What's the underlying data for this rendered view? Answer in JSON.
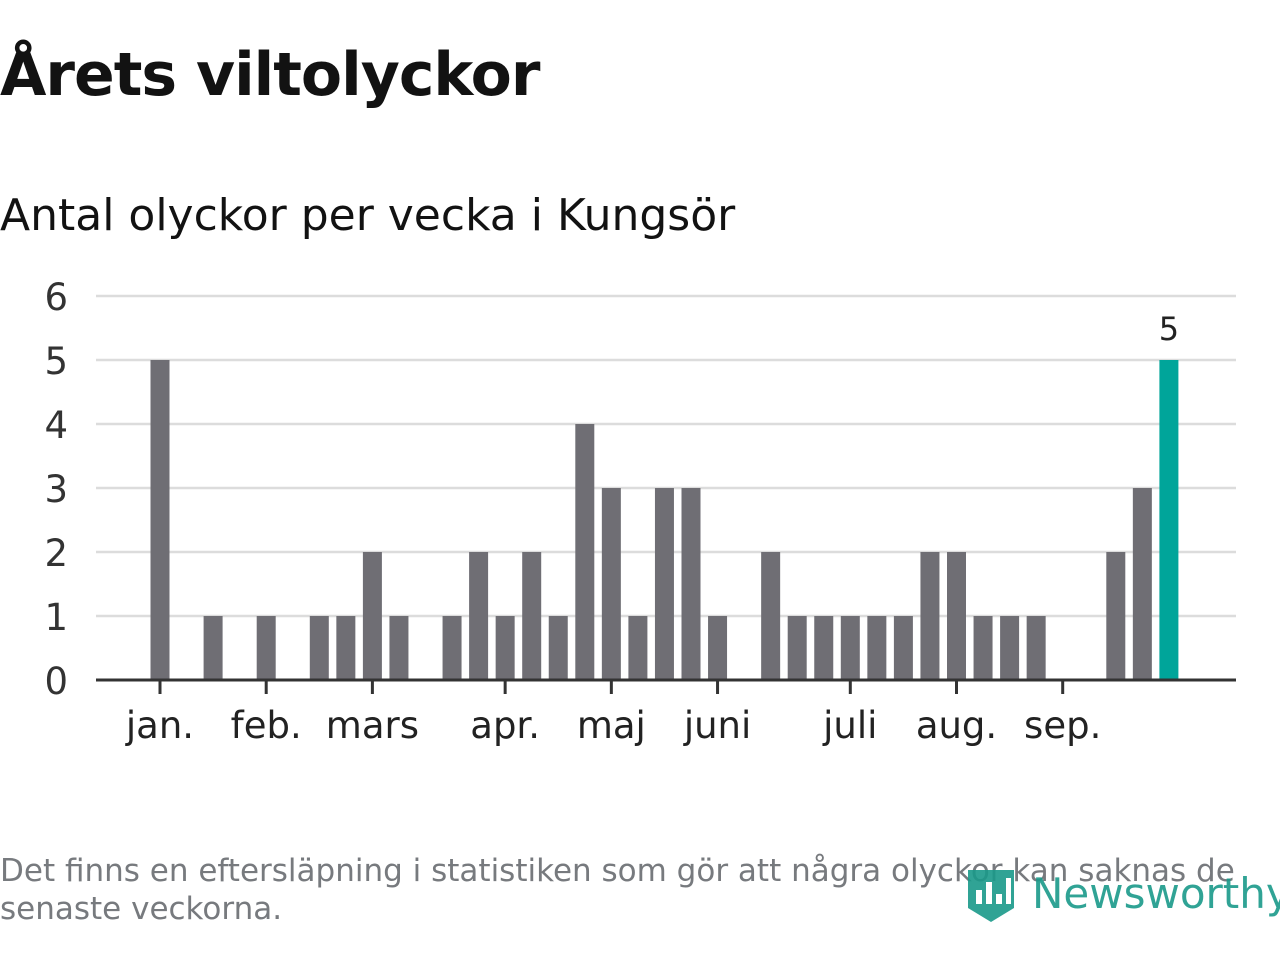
{
  "chart_data": {
    "type": "bar",
    "title": "Årets viltolyckor",
    "subtitle": "Antal olyckor per vecka i Kungsör",
    "x": [
      1,
      2,
      3,
      4,
      5,
      6,
      7,
      8,
      9,
      10,
      11,
      12,
      13,
      14,
      15,
      16,
      17,
      18,
      19,
      20,
      21,
      22,
      23,
      24,
      25,
      26,
      27,
      28,
      29,
      30,
      31,
      32,
      33,
      34,
      35,
      36,
      37,
      38,
      39
    ],
    "values": [
      5,
      0,
      1,
      0,
      1,
      0,
      1,
      1,
      2,
      1,
      0,
      1,
      2,
      1,
      2,
      1,
      4,
      3,
      1,
      3,
      3,
      1,
      0,
      2,
      1,
      1,
      1,
      1,
      1,
      2,
      2,
      1,
      1,
      1,
      0,
      0,
      2,
      3,
      5
    ],
    "month_labels": [
      {
        "label": "jan.",
        "week": 1
      },
      {
        "label": "feb.",
        "week": 5
      },
      {
        "label": "mars",
        "week": 9
      },
      {
        "label": "apr.",
        "week": 14
      },
      {
        "label": "maj",
        "week": 18
      },
      {
        "label": "juni",
        "week": 22
      },
      {
        "label": "juli",
        "week": 27
      },
      {
        "label": "aug.",
        "week": 31
      },
      {
        "label": "sep.",
        "week": 35
      }
    ],
    "y_ticks": [
      "0",
      "1",
      "2",
      "3",
      "4",
      "5",
      "6"
    ],
    "ylim": [
      0,
      6
    ],
    "grid": true,
    "highlight_index": 38,
    "highlight_label": "5",
    "bar_color": "#6f6e74",
    "highlight_color": "#00a59a",
    "grid_color": "#dcdcdc",
    "axis_color": "#333333"
  },
  "footnote": "Det finns en eftersläpning i statistiken som gör att några olyckor kan saknas de senaste veckorna.",
  "brand": {
    "name": "Newsworthy",
    "icon": "newsworthy-logo-icon",
    "color": "#1a9a8a"
  }
}
